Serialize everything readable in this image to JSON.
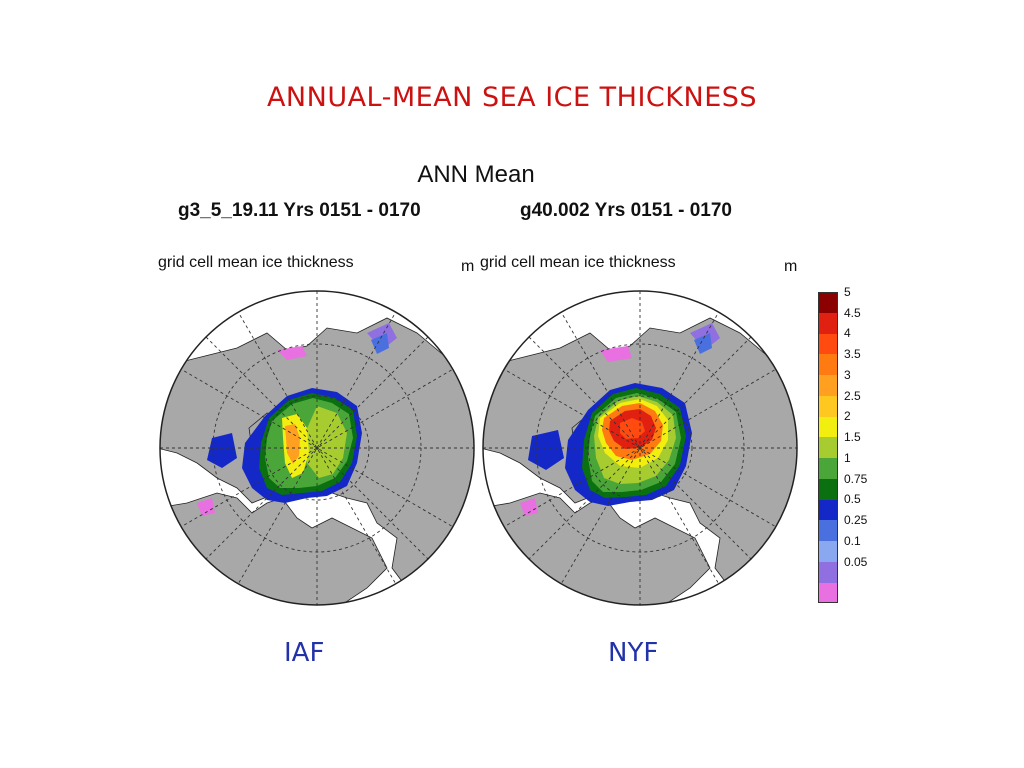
{
  "slide_title": "ANNUAL-MEAN SEA ICE THICKNESS",
  "figure_title": "ANN Mean",
  "panels": [
    {
      "run_label": "g3_5_19.11  Yrs 0151 - 0170",
      "field_label": "grid cell mean ice thickness",
      "unit": "m",
      "caption": "IAF",
      "max_thickness_m": 2.5
    },
    {
      "run_label": "g40.002  Yrs 0151 - 0170",
      "field_label": "grid cell mean ice thickness",
      "unit": "m",
      "caption": "NYF",
      "max_thickness_m": 4.5
    }
  ],
  "colorbar": {
    "unit": "m",
    "levels": [
      {
        "label": "5",
        "color": "#8b0000"
      },
      {
        "label": "4.5",
        "color": "#e02010"
      },
      {
        "label": "4",
        "color": "#ff4a10"
      },
      {
        "label": "3.5",
        "color": "#ff7a10"
      },
      {
        "label": "3",
        "color": "#ffa020"
      },
      {
        "label": "2.5",
        "color": "#ffc820"
      },
      {
        "label": "2",
        "color": "#f2ee10"
      },
      {
        "label": "1.5",
        "color": "#a6cc30"
      },
      {
        "label": "1",
        "color": "#4aa638"
      },
      {
        "label": "0.75",
        "color": "#0a7010"
      },
      {
        "label": "0.5",
        "color": "#1428c8"
      },
      {
        "label": "0.25",
        "color": "#4a70e0"
      },
      {
        "label": "0.1",
        "color": "#8aa8f0"
      },
      {
        "label": "0.05",
        "color": "#9070e0"
      },
      {
        "label": "",
        "color": "#e870e0"
      }
    ]
  },
  "colors": {
    "land": "#a8a8a8",
    "ocean": "#ffffff",
    "title": "#cc1111",
    "caption": "#2233aa"
  }
}
